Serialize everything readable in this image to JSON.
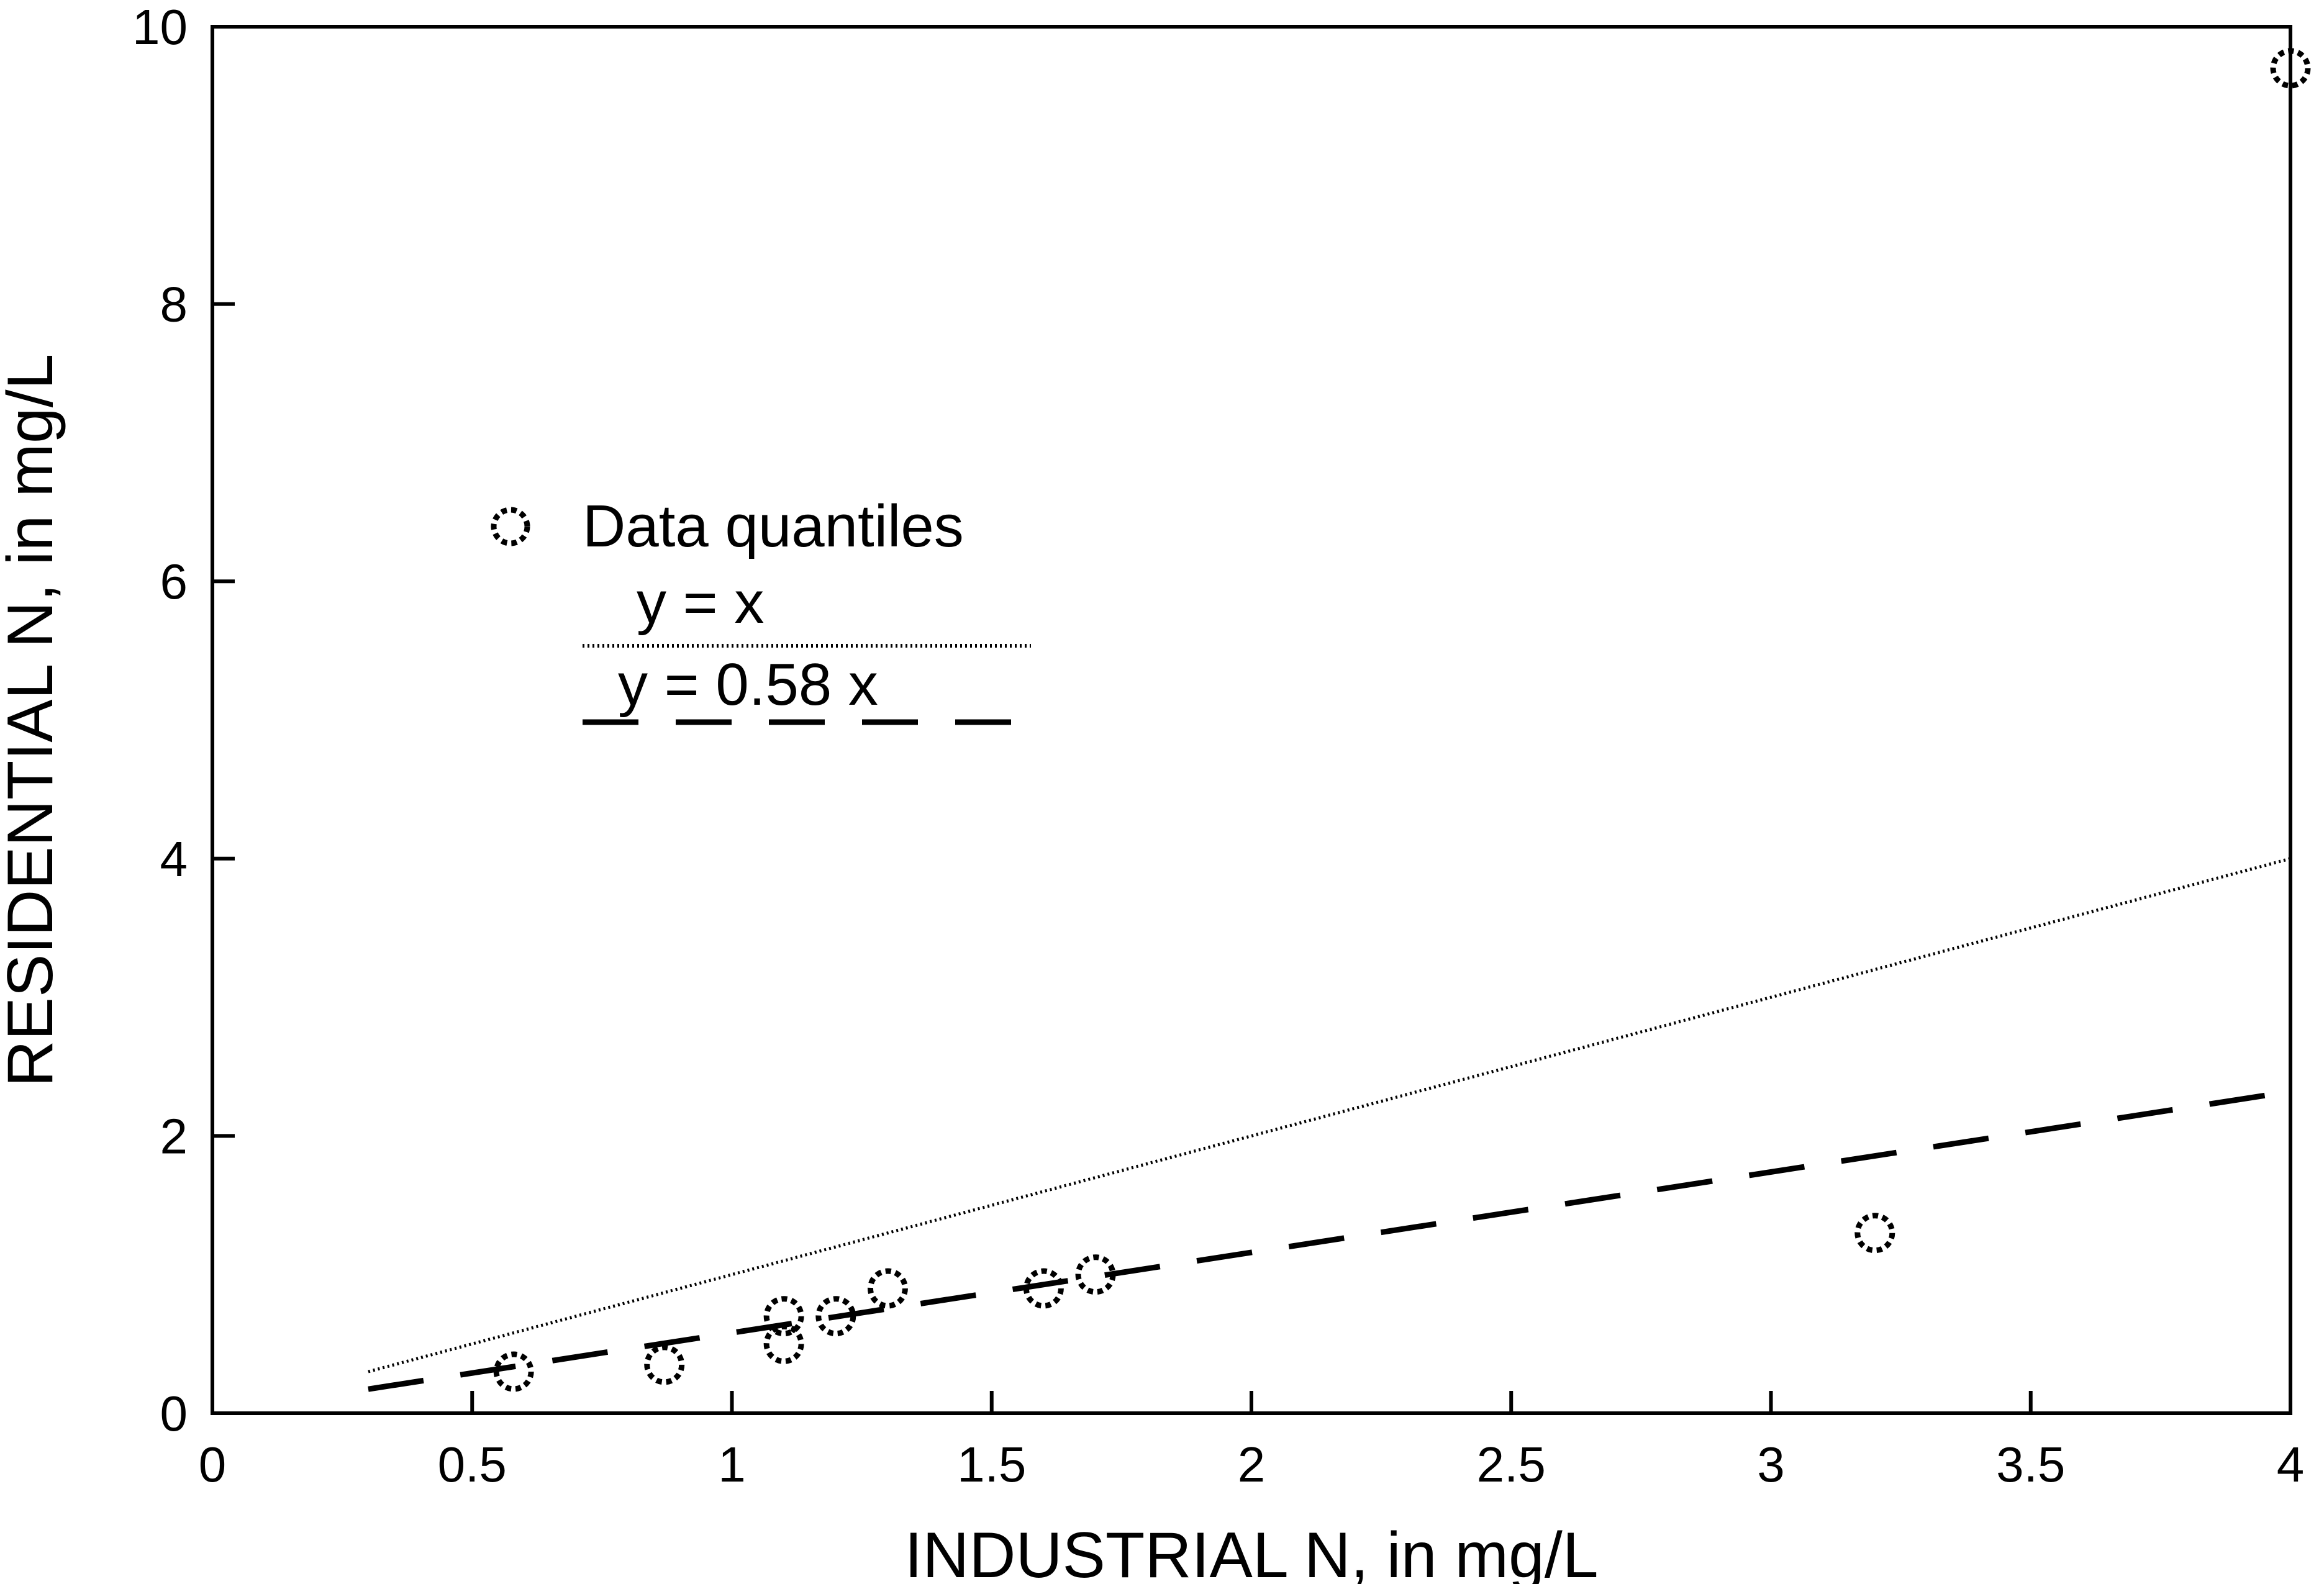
{
  "chart_data": {
    "type": "scatter",
    "title": "",
    "xlabel": "INDUSTRIAL N, in mg/L",
    "ylabel": "RESIDENTIAL N, in mg/L",
    "xlim": [
      0,
      4
    ],
    "ylim": [
      0,
      10
    ],
    "x_ticks": [
      0,
      0.5,
      1,
      1.5,
      2,
      2.5,
      3,
      3.5,
      4
    ],
    "x_tick_labels": [
      "0",
      "0.5",
      "1",
      "1.5",
      "2",
      "2.5",
      "3",
      "3.5",
      "4"
    ],
    "y_ticks": [
      0,
      2,
      4,
      6,
      8,
      10
    ],
    "y_tick_labels": [
      "0",
      "2",
      "4",
      "6",
      "8",
      "10"
    ],
    "grid": false,
    "legend_position": "upper-left",
    "series": [
      {
        "name": "Data quantiles",
        "kind": "points",
        "marker": "open-circle",
        "x": [
          0.58,
          0.87,
          1.1,
          1.1,
          1.2,
          1.3,
          1.6,
          1.7,
          3.2,
          4.0
        ],
        "y": [
          0.3,
          0.35,
          0.5,
          0.7,
          0.7,
          0.9,
          0.9,
          1.0,
          1.3,
          9.7
        ]
      },
      {
        "name": "y = x",
        "kind": "line",
        "style": "dotted",
        "x": [
          0.3,
          4.0
        ],
        "y": [
          0.3,
          4.0
        ]
      },
      {
        "name": "y = 0.58 x",
        "kind": "line",
        "style": "dashed",
        "x": [
          0.3,
          4.0
        ],
        "y": [
          0.174,
          2.32
        ]
      }
    ]
  }
}
